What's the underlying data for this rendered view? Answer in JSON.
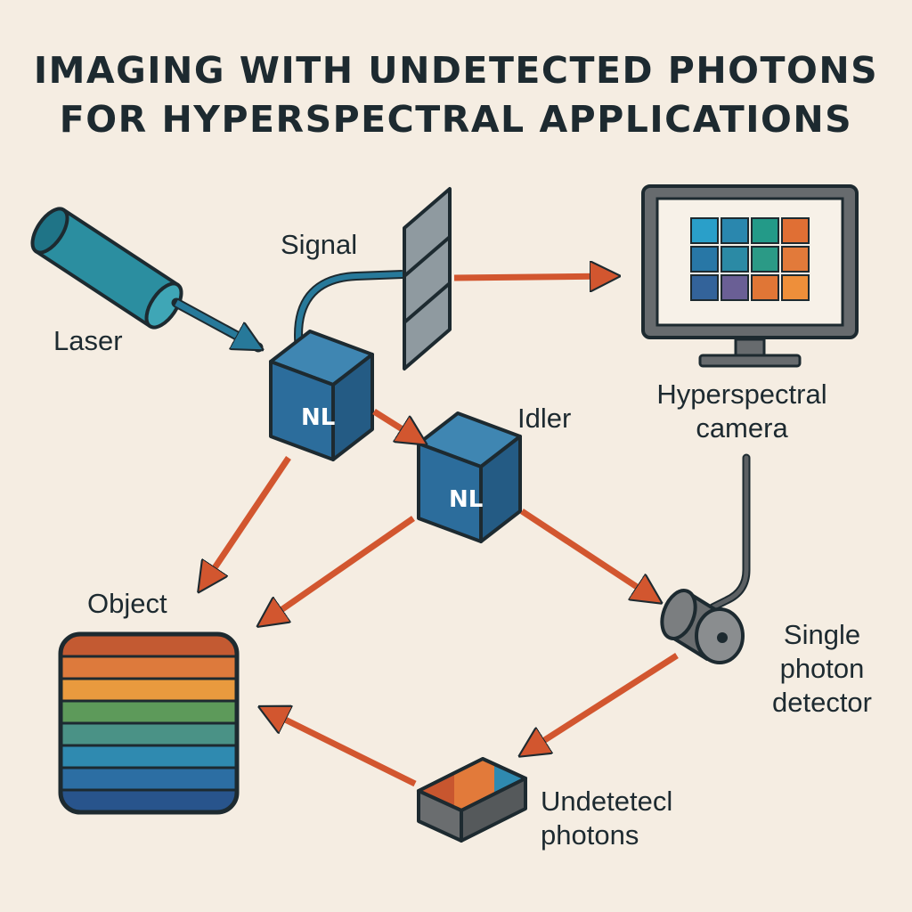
{
  "title": {
    "line1": "IMAGING WITH UNDETECTED PHOTONS",
    "line2": "FOR HYPERSPECTRAL APPLICATIONS"
  },
  "labels": {
    "laser": "Laser",
    "signal": "Signal",
    "idler": "Idler",
    "object": "Object",
    "camera_line1": "Hyperspectral",
    "camera_line2": "camera",
    "detector_line1": "Single",
    "detector_line2": "photon",
    "detector_line3": "detector",
    "undetected_line1": "Undetetecl",
    "undetected_line2": "photons",
    "crystal1": "NL",
    "crystal2": "NL"
  },
  "colors": {
    "background": "#f5ede2",
    "beam_orange": "#d2562f",
    "beam_teal": "#27799a",
    "crystal_blue": "#2c6d9c",
    "outline": "#1d2a30",
    "device_gray": "#6a6d6f"
  },
  "camera_screen_tiles": [
    "#2a9fc9",
    "#2a87ae",
    "#239a88",
    "#e06f34",
    "#2877a6",
    "#2b8aa5",
    "#2b9a86",
    "#e27a3a",
    "#33639a",
    "#6a5f95",
    "#e07636",
    "#ee8f3a"
  ],
  "object_stripes": [
    "#c35a32",
    "#dd7a3c",
    "#e99a3e",
    "#5d9a5a",
    "#4a9286",
    "#2f8ab0",
    "#2c6ea3",
    "#28548c"
  ],
  "sample_faces": [
    "#c8562f",
    "#e27a3a",
    "#2f8ab0"
  ]
}
